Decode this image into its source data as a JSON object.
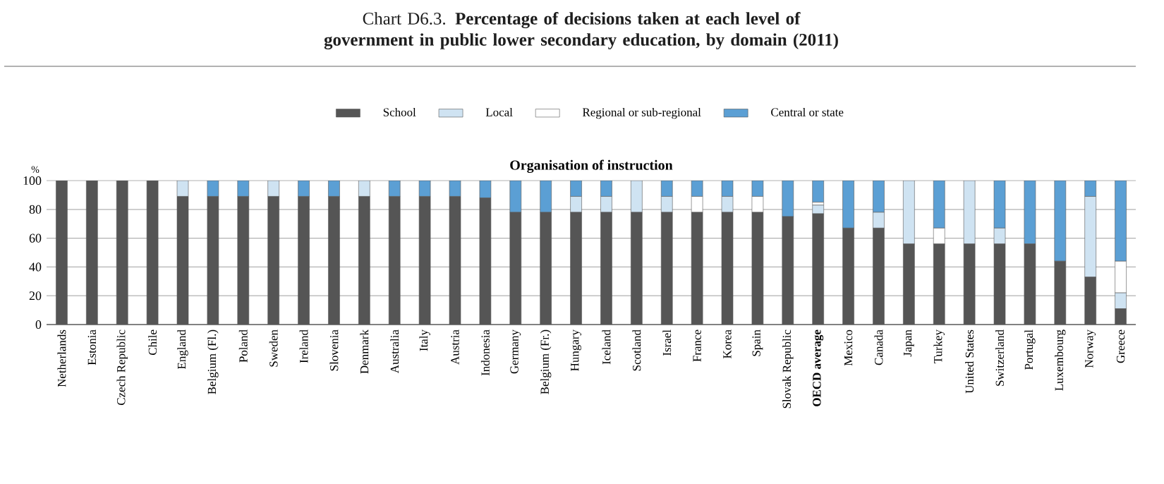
{
  "chart_data": {
    "type": "bar",
    "stacked": true,
    "title": "Chart D6.3. **Percentage of decisions taken at each level of government in public lower secondary education, by domain (2011)**",
    "subtitle": "Organisation of instruction",
    "ylabel": "%",
    "categories": [
      "Netherlands",
      "Estonia",
      "Czech Republic",
      "Chile",
      "England",
      "Belgium (Fl.)",
      "Poland",
      "Sweden",
      "Ireland",
      "Slovenia",
      "Denmark",
      "Australia",
      "Italy",
      "Austria",
      "Indonesia",
      "Germany",
      "Belgium (Fr.)",
      "Hungary",
      "Iceland",
      "Scotland",
      "Israel",
      "France",
      "Korea",
      "Spain",
      "Slovak Republic",
      "**OECD average**",
      "Mexico",
      "Canada",
      "Japan",
      "Turkey",
      "United States",
      "Switzerland",
      "Portugal",
      "Luxembourg",
      "Norway",
      "Greece"
    ],
    "series": [
      {
        "name": "School",
        "color": "#555555",
        "values": [
          100,
          100,
          100,
          100,
          89,
          89,
          89,
          89,
          89,
          89,
          89,
          89,
          89,
          89,
          88,
          78,
          78,
          78,
          78,
          78,
          78,
          78,
          78,
          78,
          75,
          77,
          67,
          67,
          56,
          56,
          56,
          56,
          56,
          44,
          33,
          11
        ]
      },
      {
        "name": "Local",
        "color": "#cfe3f2",
        "values": [
          0,
          0,
          0,
          0,
          11,
          0,
          0,
          11,
          0,
          0,
          11,
          0,
          0,
          0,
          0,
          0,
          0,
          11,
          11,
          22,
          11,
          0,
          11,
          0,
          0,
          6,
          0,
          11,
          44,
          0,
          44,
          11,
          0,
          0,
          56,
          11
        ]
      },
      {
        "name": "Regional or sub-regional",
        "color": "#ffffff",
        "values": [
          0,
          0,
          0,
          0,
          0,
          0,
          0,
          0,
          0,
          0,
          0,
          0,
          0,
          0,
          0,
          0,
          0,
          0,
          0,
          0,
          0,
          11,
          0,
          11,
          0,
          2,
          0,
          0,
          0,
          11,
          0,
          0,
          0,
          0,
          0,
          22
        ]
      },
      {
        "name": "Central or state",
        "color": "#5b9fd4",
        "values": [
          0,
          0,
          0,
          0,
          0,
          11,
          11,
          0,
          11,
          11,
          0,
          11,
          11,
          11,
          12,
          22,
          22,
          11,
          11,
          0,
          11,
          11,
          11,
          11,
          25,
          15,
          33,
          22,
          0,
          33,
          0,
          33,
          44,
          56,
          11,
          56
        ]
      }
    ],
    "ylim": [
      0,
      100
    ],
    "yticks": [
      0,
      20,
      40,
      60,
      80,
      100
    ],
    "grid": "y",
    "legend": "top"
  }
}
